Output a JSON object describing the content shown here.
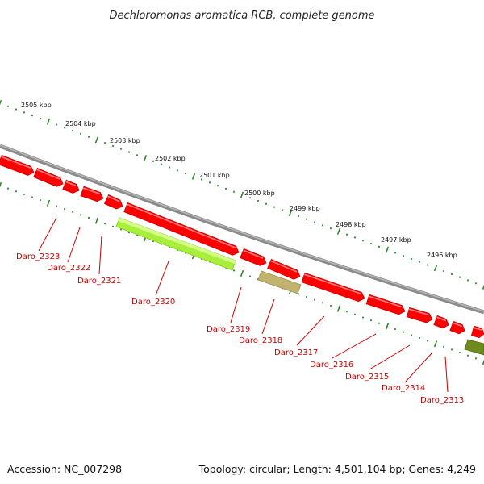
{
  "title": "Dechloromonas aromatica RCB, complete genome",
  "footer": {
    "accession": "Accession: NC_007298",
    "summary": "Topology: circular; Length: 4,501,104 bp; Genes: 4,249"
  },
  "colors": {
    "gene": "#ff0000",
    "gene_dark": "#c80000",
    "gene_light": "#ff8080",
    "lime": "#a8ef3c",
    "tan": "#c2b46e",
    "olive": "#6e8c1e",
    "tick": "#2a8a2a",
    "label": "#cc0000",
    "backbone": "#8a8a8a"
  },
  "kbp_labels": [
    "2505 kbp",
    "2504 kbp",
    "2503 kbp",
    "2502 kbp",
    "2501 kbp",
    "2500 kbp",
    "2499 kbp",
    "2498 kbp",
    "2497 kbp",
    "2496 kbp"
  ],
  "gene_labels": [
    "Daro_2323",
    "Daro_2322",
    "Daro_2321",
    "Daro_2320",
    "Daro_2319",
    "Daro_2318",
    "Daro_2317",
    "Daro_2316",
    "Daro_2315",
    "Daro_2314",
    "Daro_2313"
  ]
}
